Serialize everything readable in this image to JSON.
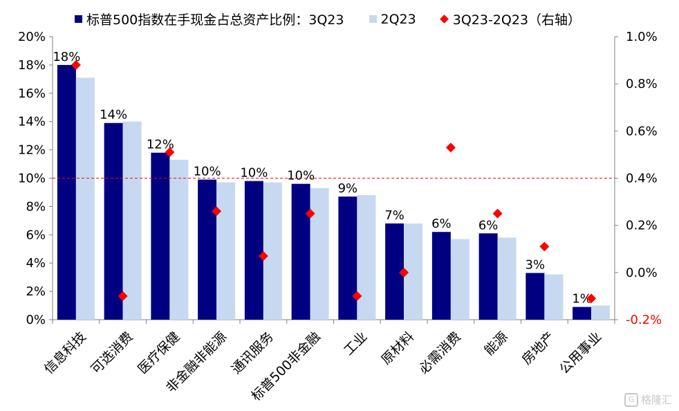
{
  "chart_data": {
    "type": "bar",
    "categories": [
      "信息科技",
      "可选消费",
      "医疗保健",
      "非金融非能源",
      "通讯服务",
      "标普500非金融",
      "工业",
      "原材料",
      "必需消费",
      "能源",
      "房地产",
      "公用事业"
    ],
    "series": [
      {
        "name": "标普500指数在手现金占总资产比例：3Q23",
        "axis": "left",
        "kind": "bar",
        "color": "#000080",
        "values": [
          18.0,
          13.9,
          11.8,
          9.9,
          9.8,
          9.6,
          8.7,
          6.8,
          6.2,
          6.1,
          3.3,
          0.9
        ],
        "labels": [
          "18%",
          "14%",
          "12%",
          "10%",
          "10%",
          "10%",
          "9%",
          "7%",
          "6%",
          "6%",
          "3%",
          "1%"
        ]
      },
      {
        "name": "2Q23",
        "axis": "left",
        "kind": "bar",
        "color": "#c6d9f1",
        "values": [
          17.1,
          14.0,
          11.3,
          9.7,
          9.7,
          9.3,
          8.8,
          6.8,
          5.7,
          5.8,
          3.2,
          1.0
        ]
      },
      {
        "name": "3Q23-2Q23（右轴）",
        "axis": "right",
        "kind": "scatter",
        "color": "#ff0000",
        "values": [
          0.88,
          -0.1,
          0.51,
          0.26,
          0.07,
          0.25,
          -0.1,
          0.0,
          0.53,
          0.25,
          0.11,
          -0.11
        ]
      }
    ],
    "ylim": [
      0,
      20
    ],
    "y2lim": [
      -0.2,
      1.0
    ],
    "yticks": [
      "0%",
      "2%",
      "4%",
      "6%",
      "8%",
      "10%",
      "12%",
      "14%",
      "16%",
      "18%",
      "20%"
    ],
    "y2ticks": [
      "-0.2%",
      "0.0%",
      "0.2%",
      "0.4%",
      "0.6%",
      "0.8%",
      "1.0%"
    ],
    "reference_line": {
      "axis": "right",
      "value": 0.4,
      "color": "#ff0000",
      "style": "dashed"
    },
    "grid": false,
    "legend_position": "top"
  },
  "colors": {
    "bar_3q23": "#000080",
    "bar_2q23": "#c6d9f1",
    "diff_marker": "#ff0000",
    "negative_tick": "#ff0000"
  },
  "watermark": {
    "text": "格隆汇",
    "icon": "logo-icon"
  }
}
